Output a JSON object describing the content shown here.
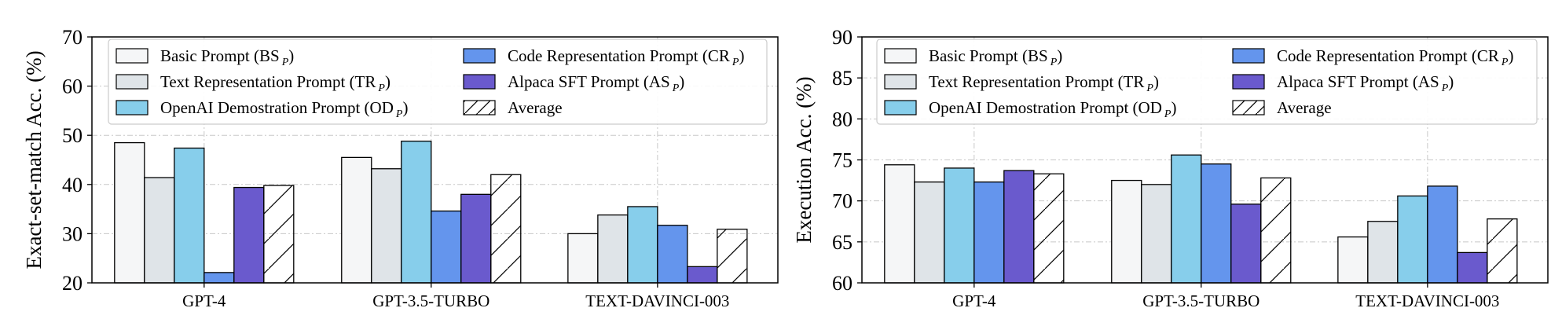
{
  "chart_data": [
    {
      "type": "bar",
      "ylabel": "Exact-set-match Acc. (%)",
      "xlabel": "",
      "categories": [
        "GPT-4",
        "GPT-3.5-TURBO",
        "TEXT-DAVINCI-003"
      ],
      "ylim": [
        20,
        70
      ],
      "yticks": [
        20,
        30,
        40,
        50,
        60,
        70
      ],
      "grid": true,
      "legend_position": "top",
      "series": [
        {
          "name": "Basic Prompt (BS",
          "sub": "P",
          "values": [
            48.5,
            45.5,
            30.0
          ],
          "color": "#f5f6f7"
        },
        {
          "name": "Text Representation Prompt (TR",
          "sub": "P",
          "values": [
            41.4,
            43.2,
            33.8
          ],
          "color": "#dfe4e8"
        },
        {
          "name": "OpenAI Demostration Prompt (OD",
          "sub": "P",
          "values": [
            47.4,
            48.8,
            35.5
          ],
          "color": "#87ceeb"
        },
        {
          "name": "Code Representation Prompt (CR",
          "sub": "P",
          "values": [
            22.1,
            34.6,
            31.7
          ],
          "color": "#6495ed"
        },
        {
          "name": "Alpaca SFT Prompt (AS",
          "sub": "P",
          "values": [
            39.4,
            38.0,
            23.3
          ],
          "color": "#6a5acd"
        },
        {
          "name": "Average",
          "values": [
            39.8,
            42.0,
            30.9
          ],
          "color": "#ffffff",
          "hatch": true
        }
      ]
    },
    {
      "type": "bar",
      "ylabel": "Execution Acc. (%)",
      "xlabel": "",
      "categories": [
        "GPT-4",
        "GPT-3.5-TURBO",
        "TEXT-DAVINCI-003"
      ],
      "ylim": [
        60,
        90
      ],
      "yticks": [
        60,
        65,
        70,
        75,
        80,
        85,
        90
      ],
      "grid": true,
      "legend_position": "top",
      "series": [
        {
          "name": "Basic Prompt (BS",
          "sub": "P",
          "values": [
            74.4,
            72.5,
            65.6
          ],
          "color": "#f5f6f7"
        },
        {
          "name": "Text Representation Prompt (TR",
          "sub": "P",
          "values": [
            72.3,
            72.0,
            67.5
          ],
          "color": "#dfe4e8"
        },
        {
          "name": "OpenAI Demostration Prompt (OD",
          "sub": "P",
          "values": [
            74.0,
            75.6,
            70.6
          ],
          "color": "#87ceeb"
        },
        {
          "name": "Code Representation Prompt (CR",
          "sub": "P",
          "values": [
            72.3,
            74.5,
            71.8
          ],
          "color": "#6495ed"
        },
        {
          "name": "Alpaca SFT Prompt (AS",
          "sub": "P",
          "values": [
            73.7,
            69.6,
            63.7
          ],
          "color": "#6a5acd"
        },
        {
          "name": "Average",
          "values": [
            73.3,
            72.8,
            67.8
          ],
          "color": "#ffffff",
          "hatch": true
        }
      ]
    }
  ]
}
